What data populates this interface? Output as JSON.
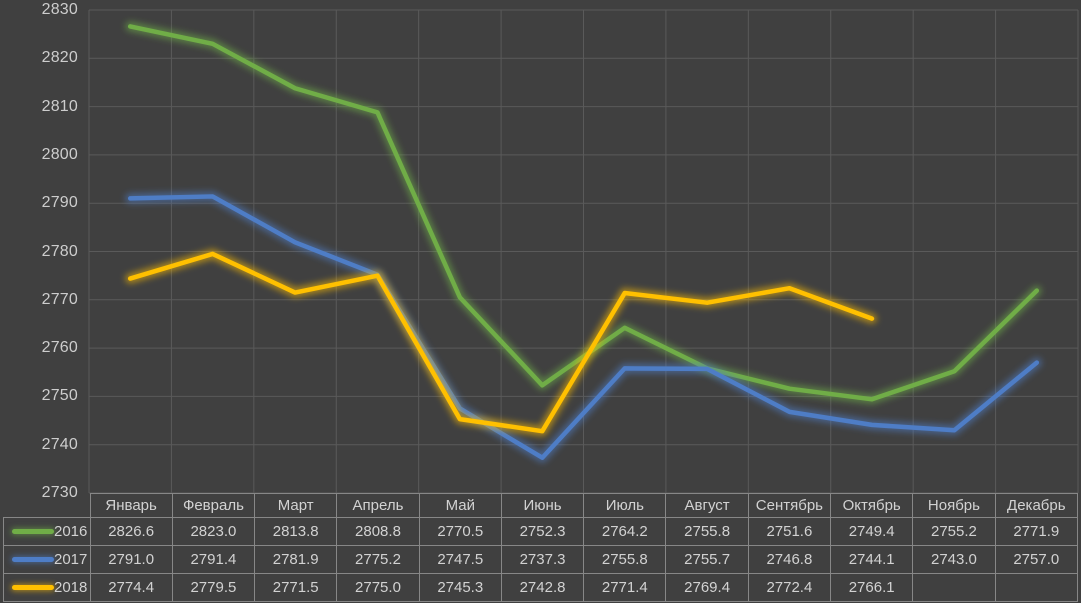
{
  "chart_data": {
    "type": "line",
    "categories": [
      "Январь",
      "Февраль",
      "Март",
      "Апрель",
      "Май",
      "Июнь",
      "Июль",
      "Август",
      "Сентябрь",
      "Октябрь",
      "Ноябрь",
      "Декабрь"
    ],
    "series": [
      {
        "name": "2016",
        "color": "#70AD47",
        "values": [
          2826.6,
          2823.0,
          2813.8,
          2808.8,
          2770.5,
          2752.3,
          2764.2,
          2755.8,
          2751.6,
          2749.4,
          2755.2,
          2771.9
        ]
      },
      {
        "name": "2017",
        "color": "#4E7DC6",
        "values": [
          2791.0,
          2791.4,
          2781.9,
          2775.2,
          2747.5,
          2737.3,
          2755.8,
          2755.7,
          2746.8,
          2744.1,
          2743.0,
          2757.0
        ]
      },
      {
        "name": "2018",
        "color": "#FFC000",
        "values": [
          2774.4,
          2779.5,
          2771.5,
          2775.0,
          2745.3,
          2742.8,
          2771.4,
          2769.4,
          2772.4,
          2766.1,
          null,
          null
        ]
      }
    ],
    "title": "",
    "xlabel": "",
    "ylabel": "",
    "ylim": [
      2730,
      2830
    ],
    "y_tick_step": 10,
    "y_tick_labels": [
      "2830",
      "2820",
      "2810",
      "2800",
      "2790",
      "2780",
      "2770",
      "2760",
      "2750",
      "2740",
      "2730"
    ],
    "grid": true,
    "legend_position": "table-left",
    "value_decimals": 1
  },
  "colors": {
    "background": "#404040",
    "gridline": "#5A5A5A",
    "table_border": "#878787",
    "text": "#D2D2D2",
    "series_2016": "#70AD47",
    "series_2017": "#4E7DC6",
    "series_2018": "#FFC000"
  }
}
